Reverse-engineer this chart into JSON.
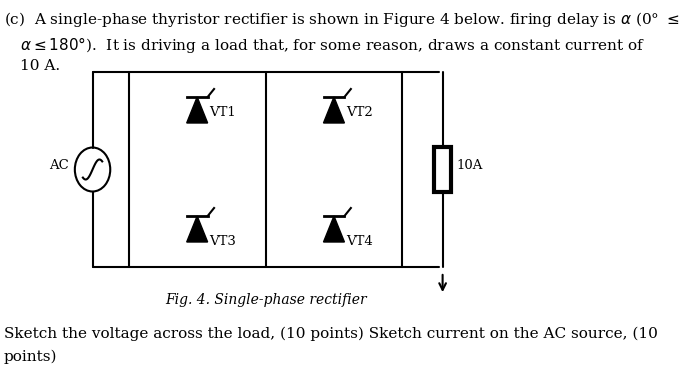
{
  "title_text": "(c)  A single-phase thyristor rectifier is shown in Figure 4 below. firing delay is α (0° ≤\n     α ≤ 180°).  It is driving a load that, for some reason, draws a constant current of\n     10 A.",
  "fig_caption": "Fig. 4. Single-phase rectifier",
  "bottom_text": "Sketch the voltage across the load, (10 points) Sketch current on the AC source, (10\npoints)",
  "bg_color": "#ffffff",
  "text_color": "#000000",
  "line_color": "#000000",
  "font_size_body": 11,
  "font_size_caption": 10,
  "vt_labels": [
    "VT1",
    "VT2",
    "VT3",
    "VT4"
  ],
  "ac_label": "AC",
  "current_label": "10A"
}
